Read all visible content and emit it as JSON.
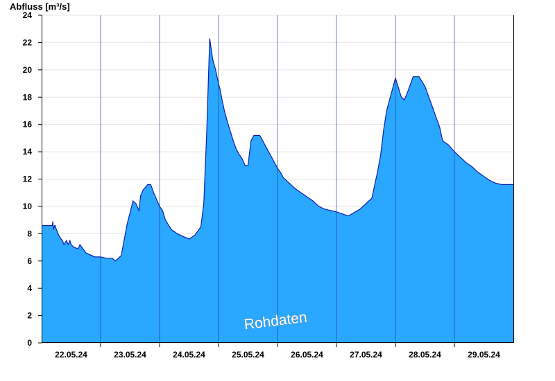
{
  "chart_data": {
    "type": "area",
    "ylabel": "Abfluss [m³/s]",
    "watermark": "Rohdaten",
    "ylim": [
      0,
      24
    ],
    "y_ticks": [
      "0",
      "2",
      "4",
      "6",
      "8",
      "10",
      "12",
      "14",
      "16",
      "18",
      "20",
      "22",
      "24"
    ],
    "x_range_days": [
      0,
      8
    ],
    "x_ticks": [
      "22.05.24",
      "23.05.24",
      "24.05.24",
      "25.05.24",
      "26.05.24",
      "27.05.24",
      "28.05.24",
      "29.05.24"
    ],
    "grid": true,
    "fill_color": "#2aa7ff",
    "line_color": "#0a1fa8",
    "series": [
      {
        "x": [
          0,
          0.18,
          0.19,
          0.2,
          0.22,
          0.23,
          0.25,
          0.3,
          0.35,
          0.38,
          0.42,
          0.45,
          0.48,
          0.5,
          0.55,
          0.62,
          0.65,
          0.7,
          0.75,
          0.8,
          0.9,
          1.0,
          1.1,
          1.2,
          1.25,
          1.3,
          1.35,
          1.45,
          1.55,
          1.6,
          1.65,
          1.68,
          1.72,
          1.8,
          1.85,
          1.9,
          2.0,
          2.05,
          2.1,
          2.2,
          2.3,
          2.4,
          2.5,
          2.6,
          2.7,
          2.75,
          2.8,
          2.85,
          2.9,
          2.95,
          3.0,
          3.03,
          3.06,
          3.1,
          3.15,
          3.2,
          3.25,
          3.3,
          3.35,
          3.4,
          3.45,
          3.5,
          3.55,
          3.6,
          3.7,
          3.8,
          3.9,
          3.95,
          4.0,
          4.05,
          4.1,
          4.2,
          4.3,
          4.4,
          4.5,
          4.6,
          4.7,
          4.8,
          4.9,
          5.0,
          5.2,
          5.4,
          5.6,
          5.7,
          5.75,
          5.8,
          5.85,
          5.9,
          5.95,
          6.0,
          6.05,
          6.1,
          6.15,
          6.2,
          6.3,
          6.4,
          6.5,
          6.55,
          6.6,
          6.65,
          6.7,
          6.75,
          6.8,
          6.9,
          7.0,
          7.1,
          7.2,
          7.3,
          7.4,
          7.5,
          7.6,
          7.7,
          7.8,
          8.0
        ],
        "y": [
          8.6,
          8.6,
          8.9,
          8.3,
          8.6,
          8.6,
          8.3,
          7.8,
          7.5,
          7.2,
          7.5,
          7.2,
          7.5,
          7.2,
          7.0,
          6.9,
          7.2,
          6.9,
          6.6,
          6.5,
          6.3,
          6.3,
          6.2,
          6.2,
          6.0,
          6.2,
          6.4,
          8.7,
          10.4,
          10.2,
          9.7,
          10.8,
          11.2,
          11.6,
          11.6,
          11.0,
          10.0,
          9.7,
          9.0,
          8.3,
          8.0,
          7.8,
          7.6,
          7.9,
          8.5,
          10.2,
          15.5,
          22.3,
          20.8,
          20.0,
          19.0,
          18.5,
          17.8,
          17.0,
          16.2,
          15.5,
          14.8,
          14.2,
          13.8,
          13.5,
          13.0,
          13.0,
          14.8,
          15.2,
          15.2,
          14.4,
          13.6,
          13.2,
          12.8,
          12.5,
          12.1,
          11.7,
          11.3,
          11.0,
          10.7,
          10.4,
          10.0,
          9.8,
          9.7,
          9.6,
          9.3,
          9.8,
          10.6,
          12.6,
          13.8,
          15.6,
          17.0,
          17.8,
          18.6,
          19.4,
          18.7,
          18.0,
          17.8,
          18.3,
          19.5,
          19.5,
          18.8,
          18.2,
          17.6,
          17.0,
          16.4,
          15.8,
          14.8,
          14.5,
          14.0,
          13.6,
          13.2,
          12.9,
          12.5,
          12.2,
          11.9,
          11.7,
          11.6,
          11.6
        ]
      }
    ]
  }
}
